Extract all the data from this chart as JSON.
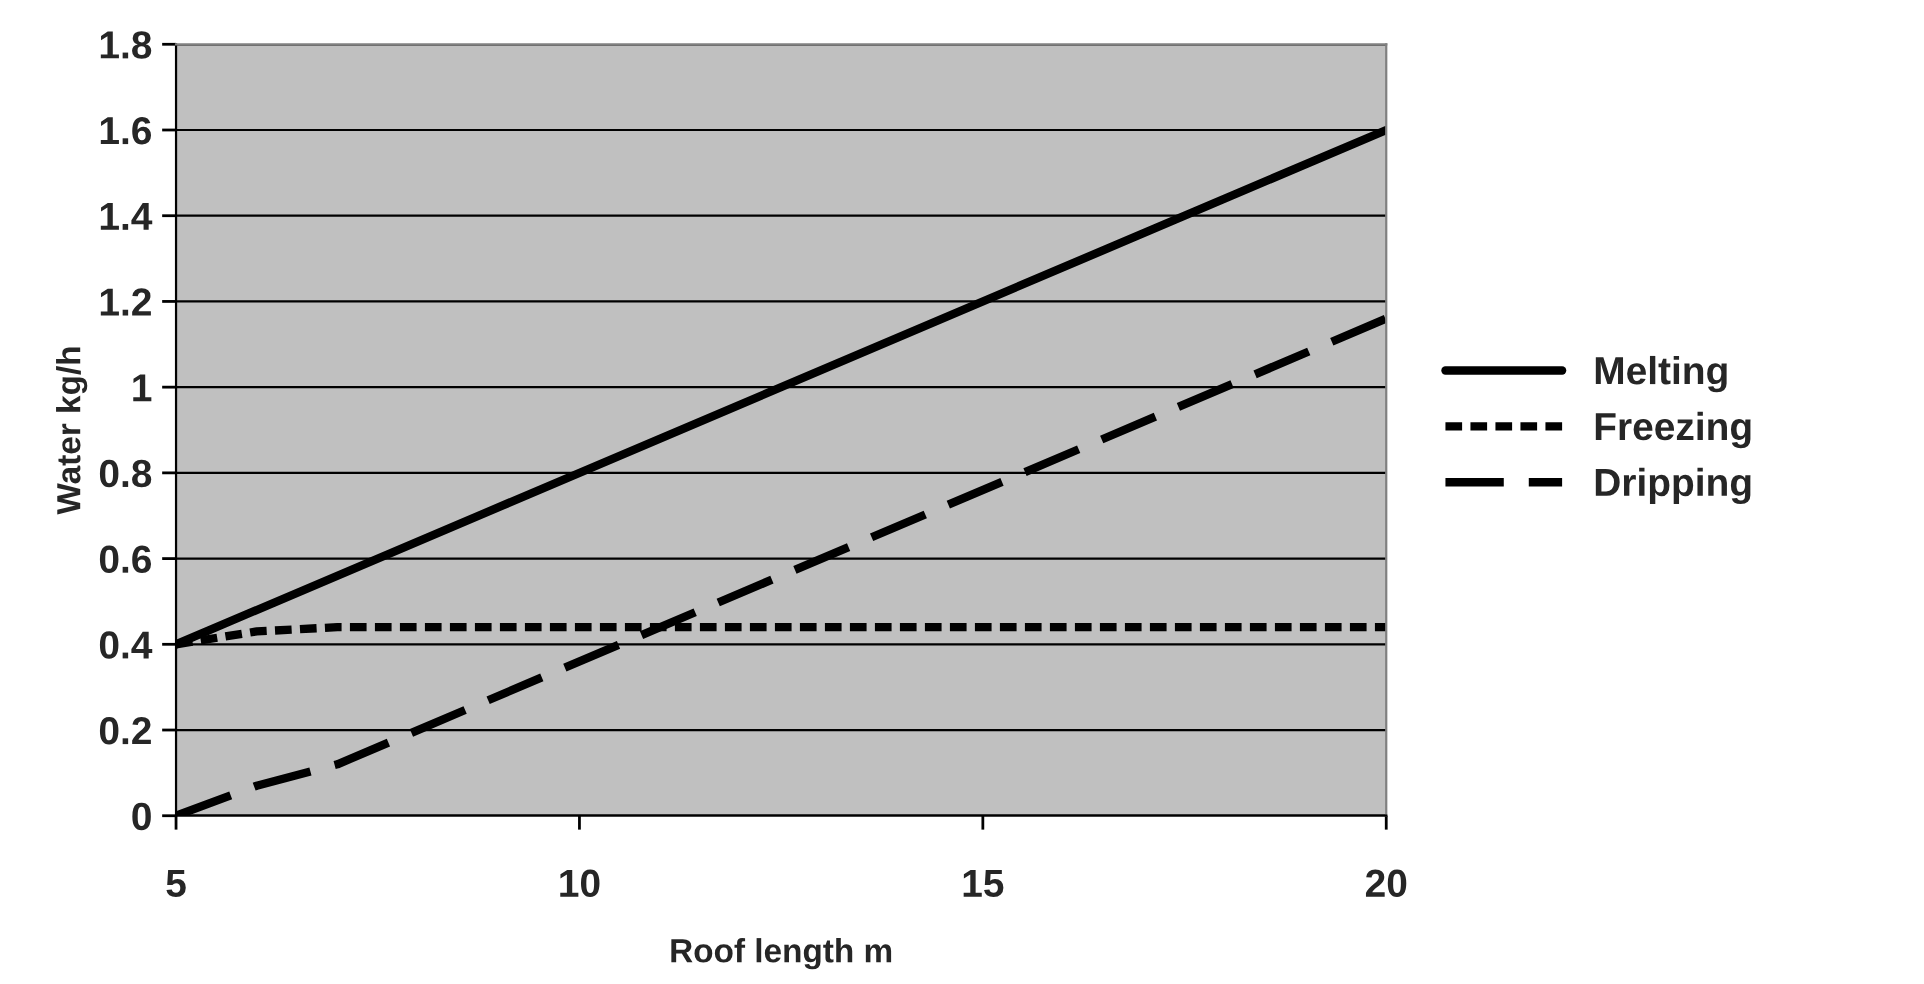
{
  "chart_data": {
    "type": "line",
    "xlabel": "Roof length m",
    "ylabel": "Water kg/h",
    "xlim": [
      5,
      20
    ],
    "xticks": [
      5,
      10,
      15,
      20
    ],
    "ylim": [
      0,
      1.8
    ],
    "yticks": [
      0,
      0.2,
      0.4,
      0.6,
      0.8,
      1,
      1.2,
      1.4,
      1.6,
      1.8
    ],
    "grid": "y",
    "legend": "right",
    "marker": "none",
    "series": [
      {
        "name": "Melting",
        "color": "#000000",
        "line_style": "solid",
        "x": [
          5,
          20
        ],
        "values": [
          0.4,
          1.6
        ]
      },
      {
        "name": "Freezing",
        "color": "#000000",
        "line_style": "dotted",
        "x": [
          5,
          6,
          7,
          20
        ],
        "values": [
          0.4,
          0.43,
          0.44,
          0.44
        ]
      },
      {
        "name": "Dripping",
        "color": "#000000",
        "line_style": "dashed",
        "x": [
          5,
          6,
          7,
          20
        ],
        "values": [
          0,
          0.07,
          0.12,
          1.16
        ]
      }
    ]
  }
}
